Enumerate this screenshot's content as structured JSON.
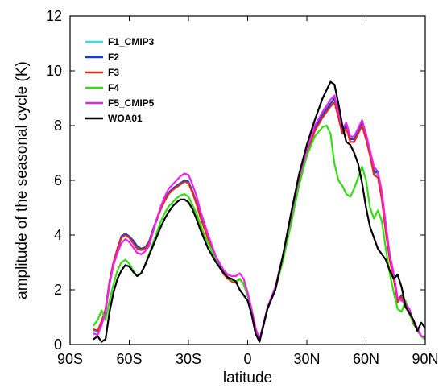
{
  "chart_data": {
    "type": "line",
    "xlabel": "latitude",
    "ylabel": "amplitude of the seasonal cycle (K)",
    "xlim": [
      -90,
      90
    ],
    "ylim": [
      0,
      12
    ],
    "xticks": [
      {
        "value": -90,
        "label": "90S"
      },
      {
        "value": -60,
        "label": "60S"
      },
      {
        "value": -30,
        "label": "30S"
      },
      {
        "value": 0,
        "label": "0"
      },
      {
        "value": 30,
        "label": "30N"
      },
      {
        "value": 60,
        "label": "60N"
      },
      {
        "value": 90,
        "label": "90N"
      }
    ],
    "yticks": [
      {
        "value": 0,
        "label": "0"
      },
      {
        "value": 2,
        "label": "2"
      },
      {
        "value": 4,
        "label": "4"
      },
      {
        "value": 6,
        "label": "6"
      },
      {
        "value": 8,
        "label": "8"
      },
      {
        "value": 10,
        "label": "10"
      },
      {
        "value": 12,
        "label": "12"
      }
    ],
    "grid": false,
    "legend_position": "top-left",
    "series": [
      {
        "name": "F1_CMIP3",
        "color": "#33e0f0",
        "x": [
          -78,
          -76,
          -74,
          -72,
          -70,
          -68,
          -66,
          -64,
          -62,
          -60,
          -58,
          -56,
          -54,
          -52,
          -50,
          -48,
          -46,
          -44,
          -42,
          -40,
          -38,
          -36,
          -34,
          -32,
          -30,
          -28,
          -26,
          -24,
          -22,
          -20,
          -18,
          -16,
          -14,
          -12,
          -10,
          -8,
          -6,
          -4,
          -2,
          0,
          2,
          4,
          6,
          8,
          10,
          14,
          18,
          22,
          26,
          30,
          34,
          38,
          42,
          44,
          46,
          48,
          50,
          52,
          54,
          56,
          58,
          60,
          62,
          64,
          66,
          68,
          70,
          72,
          74,
          76,
          78,
          80,
          82,
          84,
          86,
          88,
          90
        ],
        "y": [
          0.5,
          0.45,
          0.8,
          1.3,
          2.3,
          3.0,
          3.5,
          3.9,
          4.0,
          3.9,
          3.75,
          3.55,
          3.5,
          3.55,
          3.75,
          4.2,
          4.6,
          5.0,
          5.3,
          5.55,
          5.7,
          5.8,
          5.9,
          6.0,
          5.95,
          5.6,
          5.2,
          4.7,
          4.3,
          3.9,
          3.5,
          3.1,
          2.85,
          2.6,
          2.45,
          2.35,
          2.3,
          2.4,
          2.2,
          1.8,
          1.2,
          0.5,
          0.15,
          0.7,
          1.3,
          2.0,
          3.2,
          4.6,
          6.0,
          7.0,
          7.9,
          8.4,
          8.8,
          9.0,
          8.4,
          7.8,
          8.0,
          7.5,
          7.5,
          7.8,
          8.0,
          7.5,
          7.0,
          6.3,
          6.2,
          5.4,
          4.2,
          3.2,
          2.5,
          1.6,
          1.8,
          1.4,
          1.2,
          0.8,
          0.6,
          0.3,
          0.2
        ]
      },
      {
        "name": "F2",
        "color": "#1540cc",
        "x": [
          -78,
          -76,
          -74,
          -72,
          -70,
          -68,
          -66,
          -64,
          -62,
          -60,
          -58,
          -56,
          -54,
          -52,
          -50,
          -48,
          -46,
          -44,
          -42,
          -40,
          -38,
          -36,
          -34,
          -32,
          -30,
          -28,
          -26,
          -24,
          -22,
          -20,
          -18,
          -16,
          -14,
          -12,
          -10,
          -8,
          -6,
          -4,
          -2,
          0,
          2,
          4,
          6,
          8,
          10,
          14,
          18,
          22,
          26,
          30,
          34,
          38,
          42,
          44,
          46,
          48,
          50,
          52,
          54,
          56,
          58,
          60,
          62,
          64,
          66,
          68,
          70,
          72,
          74,
          76,
          78,
          80,
          82,
          84,
          86,
          88,
          90
        ],
        "y": [
          0.55,
          0.5,
          0.8,
          1.3,
          2.3,
          3.0,
          3.5,
          3.95,
          4.05,
          3.95,
          3.8,
          3.6,
          3.5,
          3.55,
          3.75,
          4.2,
          4.6,
          5.0,
          5.3,
          5.55,
          5.7,
          5.8,
          5.9,
          6.0,
          5.95,
          5.6,
          5.2,
          4.7,
          4.3,
          3.9,
          3.5,
          3.1,
          2.85,
          2.6,
          2.45,
          2.35,
          2.3,
          2.4,
          2.2,
          1.8,
          1.2,
          0.5,
          0.15,
          0.7,
          1.3,
          2.0,
          3.2,
          4.6,
          6.0,
          7.0,
          7.9,
          8.4,
          8.8,
          9.0,
          8.4,
          7.8,
          8.0,
          7.5,
          7.5,
          7.8,
          8.1,
          7.6,
          7.0,
          6.3,
          6.3,
          5.4,
          4.2,
          3.2,
          2.5,
          1.6,
          1.8,
          1.4,
          1.2,
          0.8,
          0.6,
          0.3,
          0.25
        ]
      },
      {
        "name": "F3",
        "color": "#e32a1a",
        "x": [
          -78,
          -76,
          -74,
          -72,
          -70,
          -68,
          -66,
          -64,
          -62,
          -60,
          -58,
          -56,
          -54,
          -52,
          -50,
          -48,
          -46,
          -44,
          -42,
          -40,
          -38,
          -36,
          -34,
          -32,
          -30,
          -28,
          -26,
          -24,
          -22,
          -20,
          -18,
          -16,
          -14,
          -12,
          -10,
          -8,
          -6,
          -4,
          -2,
          0,
          2,
          4,
          6,
          8,
          10,
          14,
          18,
          22,
          26,
          30,
          34,
          38,
          42,
          44,
          46,
          48,
          50,
          52,
          54,
          56,
          58,
          60,
          62,
          64,
          66,
          68,
          70,
          72,
          74,
          76,
          78,
          80,
          82,
          84,
          86,
          88,
          90
        ],
        "y": [
          0.55,
          0.5,
          0.85,
          1.3,
          2.3,
          3.0,
          3.5,
          3.9,
          4.0,
          3.9,
          3.7,
          3.5,
          3.45,
          3.5,
          3.7,
          4.15,
          4.55,
          4.95,
          5.25,
          5.5,
          5.65,
          5.75,
          5.85,
          5.95,
          5.9,
          5.55,
          5.15,
          4.65,
          4.25,
          3.85,
          3.45,
          3.05,
          2.8,
          2.55,
          2.4,
          2.3,
          2.25,
          2.4,
          2.2,
          1.8,
          1.2,
          0.5,
          0.15,
          0.7,
          1.3,
          2.0,
          3.2,
          4.5,
          5.9,
          6.9,
          7.8,
          8.3,
          8.7,
          8.85,
          8.3,
          7.7,
          7.9,
          7.4,
          7.4,
          7.7,
          8.0,
          7.5,
          6.9,
          6.2,
          6.1,
          5.3,
          4.1,
          3.1,
          2.4,
          1.55,
          1.75,
          1.35,
          1.15,
          0.75,
          0.55,
          0.3,
          0.2
        ]
      },
      {
        "name": "F4",
        "color": "#33dd11",
        "x": [
          -78,
          -76,
          -74,
          -72,
          -70,
          -68,
          -66,
          -64,
          -62,
          -60,
          -58,
          -56,
          -54,
          -52,
          -50,
          -48,
          -46,
          -44,
          -42,
          -40,
          -38,
          -36,
          -34,
          -32,
          -30,
          -28,
          -26,
          -24,
          -22,
          -20,
          -18,
          -16,
          -14,
          -12,
          -10,
          -8,
          -6,
          -4,
          -2,
          0,
          2,
          4,
          6,
          8,
          10,
          14,
          18,
          22,
          26,
          30,
          34,
          38,
          40,
          42,
          44,
          46,
          48,
          50,
          52,
          54,
          56,
          58,
          60,
          62,
          64,
          66,
          68,
          70,
          72,
          74,
          76,
          78,
          80,
          82,
          84,
          86,
          88,
          90
        ],
        "y": [
          0.7,
          0.9,
          1.25,
          0.9,
          1.6,
          2.2,
          2.7,
          3.0,
          3.1,
          2.95,
          2.7,
          2.5,
          2.6,
          2.9,
          3.3,
          3.7,
          4.1,
          4.5,
          4.8,
          5.05,
          5.2,
          5.35,
          5.45,
          5.5,
          5.4,
          5.1,
          4.8,
          4.4,
          4.0,
          3.7,
          3.4,
          3.05,
          2.8,
          2.6,
          2.45,
          2.35,
          2.3,
          2.4,
          2.2,
          1.8,
          1.2,
          0.5,
          0.15,
          0.7,
          1.3,
          2.0,
          3.1,
          4.4,
          5.8,
          6.9,
          7.6,
          7.95,
          8.0,
          7.7,
          6.6,
          6.0,
          5.8,
          5.5,
          5.4,
          5.7,
          6.1,
          6.5,
          6.0,
          5.0,
          4.6,
          4.9,
          4.5,
          3.5,
          2.6,
          1.9,
          1.3,
          1.2,
          1.6,
          1.1,
          0.8,
          0.5,
          0.3,
          0.2
        ]
      },
      {
        "name": "F5_CMIP5",
        "color": "#ee22ee",
        "x": [
          -78,
          -76,
          -74,
          -72,
          -70,
          -68,
          -66,
          -64,
          -62,
          -60,
          -58,
          -56,
          -54,
          -52,
          -50,
          -48,
          -46,
          -44,
          -42,
          -40,
          -38,
          -36,
          -34,
          -32,
          -30,
          -28,
          -26,
          -24,
          -22,
          -20,
          -18,
          -16,
          -14,
          -12,
          -10,
          -8,
          -6,
          -4,
          -2,
          0,
          2,
          4,
          6,
          8,
          10,
          14,
          18,
          22,
          26,
          30,
          34,
          38,
          42,
          44,
          46,
          48,
          50,
          52,
          54,
          56,
          58,
          60,
          62,
          64,
          66,
          68,
          70,
          72,
          74,
          76,
          78,
          80,
          82,
          84,
          86,
          88,
          90
        ],
        "y": [
          0.4,
          0.35,
          0.7,
          1.2,
          2.2,
          2.9,
          3.35,
          3.7,
          3.85,
          3.75,
          3.55,
          3.35,
          3.3,
          3.4,
          3.6,
          4.1,
          4.6,
          5.05,
          5.4,
          5.7,
          5.85,
          6.0,
          6.15,
          6.25,
          6.2,
          5.85,
          5.45,
          4.9,
          4.45,
          4.0,
          3.6,
          3.2,
          2.95,
          2.7,
          2.55,
          2.5,
          2.5,
          2.6,
          2.4,
          1.9,
          1.3,
          0.6,
          0.2,
          0.75,
          1.35,
          2.1,
          3.3,
          4.7,
          6.1,
          7.1,
          8.0,
          8.5,
          8.95,
          9.1,
          8.5,
          7.9,
          8.1,
          7.6,
          7.6,
          7.9,
          8.2,
          7.7,
          7.1,
          6.5,
          6.3,
          5.6,
          4.4,
          3.3,
          2.6,
          1.7,
          1.6,
          1.5,
          1.3,
          0.85,
          0.6,
          0.3,
          0.3
        ]
      },
      {
        "name": "WOA01",
        "color": "#000000",
        "x": [
          -78,
          -76,
          -74,
          -72,
          -70,
          -68,
          -66,
          -64,
          -62,
          -60,
          -58,
          -56,
          -54,
          -52,
          -50,
          -48,
          -46,
          -44,
          -42,
          -40,
          -38,
          -36,
          -34,
          -32,
          -30,
          -28,
          -26,
          -24,
          -22,
          -20,
          -18,
          -16,
          -14,
          -12,
          -10,
          -8,
          -6,
          -4,
          -2,
          0,
          2,
          4,
          6,
          8,
          10,
          14,
          18,
          22,
          26,
          30,
          34,
          38,
          40,
          42,
          44,
          46,
          48,
          50,
          52,
          54,
          56,
          58,
          60,
          62,
          64,
          66,
          68,
          70,
          72,
          74,
          76,
          78,
          80,
          82,
          84,
          86,
          88,
          90
        ],
        "y": [
          0.2,
          0.3,
          0.1,
          0.2,
          1.2,
          1.9,
          2.4,
          2.7,
          2.9,
          2.85,
          2.65,
          2.5,
          2.6,
          2.9,
          3.25,
          3.6,
          3.95,
          4.3,
          4.6,
          4.85,
          5.05,
          5.2,
          5.3,
          5.3,
          5.2,
          4.95,
          4.6,
          4.2,
          3.85,
          3.5,
          3.25,
          3.0,
          2.8,
          2.6,
          2.45,
          2.4,
          2.3,
          2.0,
          1.8,
          1.6,
          1.1,
          0.4,
          0.1,
          0.7,
          1.3,
          2.0,
          3.3,
          4.8,
          6.2,
          7.3,
          8.2,
          9.0,
          9.3,
          9.6,
          9.5,
          8.8,
          8.0,
          7.4,
          7.3,
          7.0,
          6.6,
          5.9,
          5.0,
          4.3,
          3.9,
          3.5,
          3.3,
          3.1,
          2.7,
          2.4,
          2.55,
          2.1,
          1.4,
          1.15,
          0.9,
          0.5,
          0.8,
          0.6
        ]
      }
    ]
  }
}
